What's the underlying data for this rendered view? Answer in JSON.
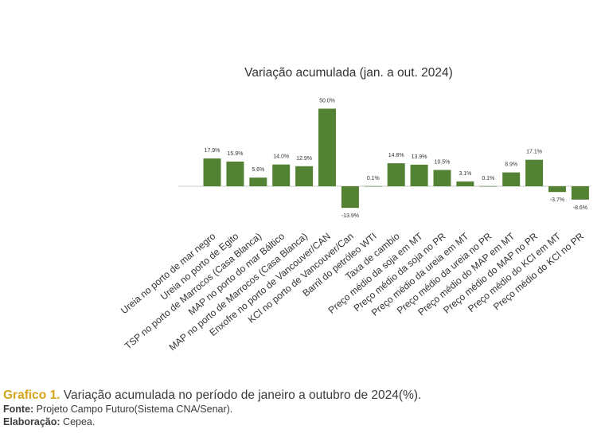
{
  "chart_data": {
    "type": "bar",
    "title": "Variação acumulada (jan. a out. 2024)",
    "xlabel": "",
    "ylabel": "",
    "ylim": [
      -16,
      52
    ],
    "grid": false,
    "legend": "none",
    "bar_color": "#548235",
    "categories": [
      "Ureia no porto de mar negro",
      "Ureia no porto de Egito",
      "TSP no porto de Marrocos (Casa Blanca)",
      "MAP no porto do mar Báltico",
      "MAP no porto de Marrocos (Casa Blanca)",
      "Enxofre no porto de Vancouver/CAN",
      "KCl no porto de Vancouver/Can",
      "Barril do petróleo WTI",
      "Taxa de cambio",
      "Preço médio da soja em MT",
      "Preço médio da soja no PR",
      "Preço médio da ureia em MT",
      "Preço médio da ureia no PR",
      "Preço médio do MAP em MT",
      "Preço médio do MAP no PR",
      "Preço médio do KCl em MT",
      "Preço médio do KCl no PR"
    ],
    "values": [
      17.9,
      15.9,
      5.6,
      14.0,
      12.9,
      50.0,
      -13.9,
      0.1,
      14.8,
      13.9,
      10.5,
      3.1,
      0.1,
      8.9,
      17.1,
      -3.7,
      -8.6
    ],
    "data_labels": [
      "17.9%",
      "15.9%",
      "5.6%",
      "14.0%",
      "12.9%",
      "50.0%",
      "-13.9%",
      "0.1%",
      "14.8%",
      "13.9%",
      "10.5%",
      "3.1%",
      "0.1%",
      "8.9%",
      "17.1%",
      "-3.7%",
      "-8.6%"
    ]
  },
  "caption": {
    "label": "Grafico 1.",
    "text": " Variação acumulada no período de janeiro a outubro de 2024(%).",
    "source_label": "Fonte:",
    "source_text": " Projeto Campo Futuro(Sistema CNA/Senar).",
    "elaboration_label": "Elaboração:",
    "elaboration_text": " Cepea."
  }
}
